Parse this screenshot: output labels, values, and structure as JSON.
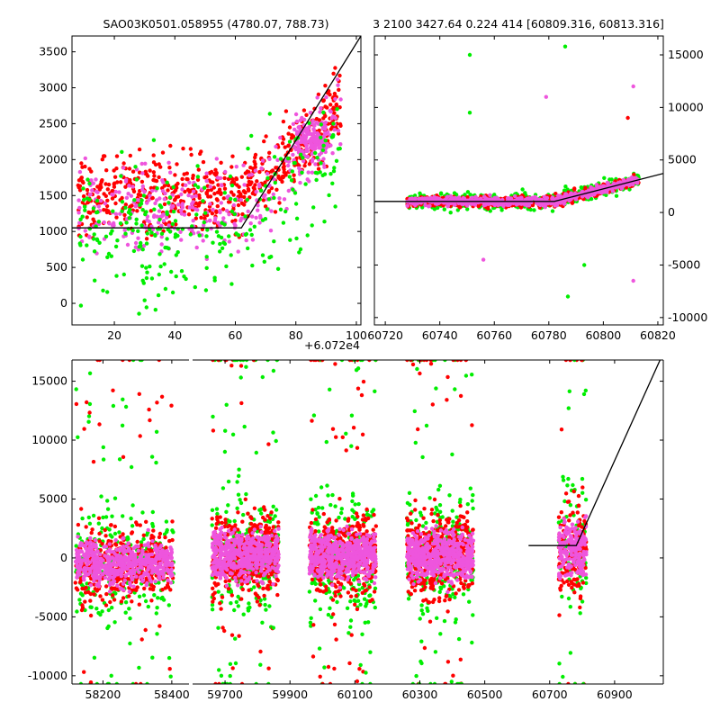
{
  "titles": {
    "left": "SAO03K0501.058955 (4780.07, 788.73)",
    "right": "3 2100 3427.64 0.224 414 [60809.316, 60813.316]"
  },
  "colors": {
    "red": "#ff0000",
    "green": "#00ee00",
    "pink": "#ee55dd",
    "line": "#000000"
  },
  "chart_data": [
    {
      "type": "scatter",
      "panel": "top-left",
      "xlim": [
        6,
        101.5
      ],
      "ylim": [
        -300,
        3720
      ],
      "xticks": [
        20,
        40,
        60,
        80,
        100
      ],
      "xtick_labels": [
        "20",
        "40",
        "60",
        "80",
        "100"
      ],
      "yticks": [
        0,
        500,
        1000,
        1500,
        2000,
        2500,
        3000,
        3500
      ],
      "ytick_labels": [
        "0",
        "500",
        "1000",
        "1500",
        "2000",
        "2500",
        "3000",
        "3500"
      ],
      "offset_label": "+6.072e4",
      "series": [
        {
          "color": "red",
          "style": "dense scatter",
          "x_range": [
            8,
            95
          ],
          "y_range": [
            -200,
            3600
          ]
        },
        {
          "color": "green",
          "style": "sparse scatter",
          "x_range": [
            8,
            95
          ],
          "y_range": [
            -300,
            3700
          ]
        },
        {
          "color": "pink",
          "style": "scatter, cluster near x 80-90 y 2500-3000",
          "x_range": [
            8,
            95
          ],
          "y_range": [
            -200,
            3500
          ]
        }
      ],
      "model_line": {
        "x": [
          6,
          62,
          101.5
        ],
        "y": [
          1050,
          1050,
          3720
        ]
      }
    },
    {
      "type": "scatter",
      "panel": "top-right",
      "xlim": [
        60716,
        60822
      ],
      "ylim": [
        -10700,
        16800
      ],
      "xticks": [
        60720,
        60740,
        60760,
        60780,
        60800,
        60820
      ],
      "xtick_labels": [
        "60720",
        "60740",
        "60760",
        "60780",
        "60800",
        "60820"
      ],
      "yticks": [
        -10000,
        -5000,
        0,
        5000,
        10000,
        15000
      ],
      "ytick_labels": [
        "-10000",
        "-5000",
        "0",
        "5000",
        "10000",
        "15000"
      ],
      "series": [
        {
          "color": "red",
          "x_range": [
            60728,
            60813
          ],
          "y_range": [
            -2500,
            4500
          ]
        },
        {
          "color": "green",
          "x_range": [
            60728,
            60813
          ],
          "y_range": [
            -8000,
            15000
          ]
        },
        {
          "color": "pink",
          "x_range": [
            60728,
            60813
          ],
          "y_range": [
            -6500,
            12000
          ]
        }
      ],
      "model_line": {
        "x": [
          60716,
          60782,
          60822
        ],
        "y": [
          1050,
          1050,
          3720
        ]
      }
    },
    {
      "type": "scatter",
      "panel": "bottom",
      "ylim": [
        -10700,
        16800
      ],
      "yticks": [
        -10000,
        -5000,
        0,
        5000,
        10000,
        15000
      ],
      "ytick_labels": [
        "-10000",
        "-5000",
        "0",
        "5000",
        "10000",
        "15000"
      ],
      "segments": [
        {
          "xlim": [
            58110,
            58450
          ],
          "xticks": [
            58200,
            58400
          ],
          "xtick_labels": [
            "58200",
            "58400"
          ]
        },
        {
          "xlim": [
            59600,
            61050
          ],
          "xticks": [
            59700,
            59900,
            60100,
            60300,
            60500,
            60700,
            60900
          ],
          "xtick_labels": [
            "59700",
            "59900",
            "60100",
            "60300",
            "60500",
            "60700",
            "60900"
          ]
        }
      ],
      "groups": [
        {
          "x_range": [
            58120,
            58405
          ],
          "core_y": [
            -3000,
            2000
          ]
        },
        {
          "x_range": [
            59660,
            59865
          ],
          "core_y": [
            -2500,
            3000
          ]
        },
        {
          "x_range": [
            59960,
            60165
          ],
          "core_y": [
            -2500,
            3000
          ]
        },
        {
          "x_range": [
            60260,
            60465
          ],
          "core_y": [
            -2500,
            3000
          ]
        },
        {
          "x_range": [
            60728,
            60813
          ],
          "core_y": [
            -2500,
            4000
          ]
        }
      ],
      "series": [
        {
          "color": "red",
          "y_range": [
            -10500,
            16000
          ]
        },
        {
          "color": "green",
          "y_range": [
            -10500,
            16000
          ]
        },
        {
          "color": "pink",
          "y_range": [
            -9500,
            14500
          ]
        }
      ],
      "model_line": {
        "x": [
          60635,
          60782,
          61040
        ],
        "y": [
          1050,
          1050,
          16800
        ]
      }
    }
  ]
}
